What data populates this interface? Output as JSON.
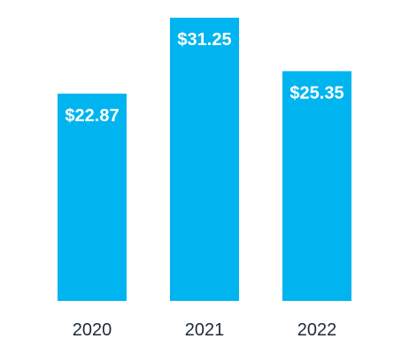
{
  "chart_data": {
    "type": "bar",
    "categories": [
      "2020",
      "2021",
      "2022"
    ],
    "values": [
      22.87,
      31.25,
      25.35
    ],
    "data_labels": [
      "$22.87",
      "$31.25",
      "$25.35"
    ],
    "title": "",
    "xlabel": "",
    "ylabel": "",
    "ylim": [
      0,
      31.25
    ],
    "grid": false,
    "legend": "none",
    "colors": {
      "bar": "#00b4f0",
      "data_label": "#ffffff",
      "tick_label": "#1f2a3a"
    }
  }
}
